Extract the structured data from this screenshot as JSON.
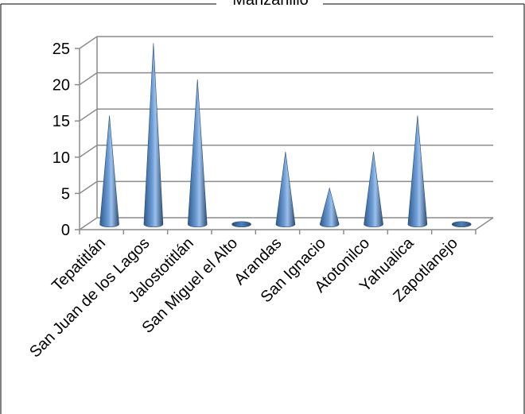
{
  "chart_data": {
    "type": "bar",
    "subtype": "3d-cone",
    "title": "Manzanillo",
    "xlabel": "",
    "ylabel": "",
    "categories": [
      "Tepatitlán",
      "San Juan de los Lagos",
      "Jalostotitlán",
      "San Miguel el Alto",
      "Arandas",
      "San Ignacio",
      "Atotonilco",
      "Yahualica",
      "Zapotlanejo"
    ],
    "values": [
      15,
      25,
      20,
      0,
      10,
      5,
      10,
      15,
      0
    ],
    "ylim": [
      0,
      25
    ],
    "yticks": [
      "0",
      "5",
      "10",
      "15",
      "20",
      "25"
    ],
    "grid": true,
    "legend": "none",
    "colors": {
      "cone_light": "#8fb4e3",
      "cone_mid": "#4f81bd",
      "cone_dark": "#2c4d75",
      "grid": "#8c8c8c",
      "frame": "#000000"
    }
  }
}
